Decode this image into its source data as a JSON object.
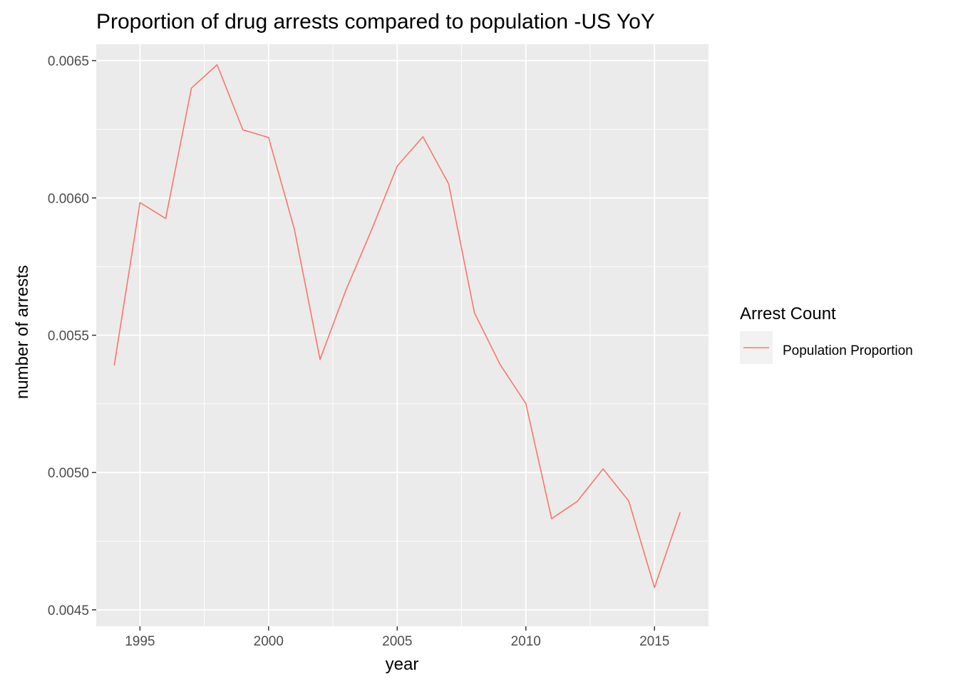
{
  "chart_data": {
    "type": "line",
    "title": "Proportion of drug arrests compared to population -US YoY",
    "xlabel": "year",
    "ylabel": "number of arrests",
    "xlim": [
      1993.3,
      2017.1
    ],
    "ylim": [
      0.00444,
      0.00656
    ],
    "x_ticks": [
      1995,
      2000,
      2005,
      2010,
      2015
    ],
    "x_tick_labels": [
      "1995",
      "2000",
      "2005",
      "2010",
      "2015"
    ],
    "y_ticks": [
      0.0045,
      0.005,
      0.0055,
      0.006,
      0.0065
    ],
    "y_tick_labels": [
      "0.0045",
      "0.0050",
      "0.0055",
      "0.0060",
      "0.0065"
    ],
    "grid": true,
    "legend": {
      "title": "Arrest Count",
      "placement": "right",
      "entries": [
        "Population Proportion"
      ]
    },
    "series": [
      {
        "name": "Population Proportion",
        "color": "#f8766d",
        "x": [
          1994,
          1995,
          1996,
          1997,
          1998,
          1999,
          2000,
          2001,
          2002,
          2003,
          2004,
          2005,
          2006,
          2007,
          2008,
          2009,
          2010,
          2011,
          2012,
          2013,
          2014,
          2015,
          2016
        ],
        "y": [
          0.00539,
          0.005983,
          0.005925,
          0.0064,
          0.006485,
          0.006248,
          0.00622,
          0.005887,
          0.005412,
          0.005663,
          0.005883,
          0.006116,
          0.006223,
          0.006051,
          0.005582,
          0.005393,
          0.005251,
          0.004832,
          0.004895,
          0.005013,
          0.004896,
          0.004581,
          0.004856
        ]
      }
    ]
  }
}
